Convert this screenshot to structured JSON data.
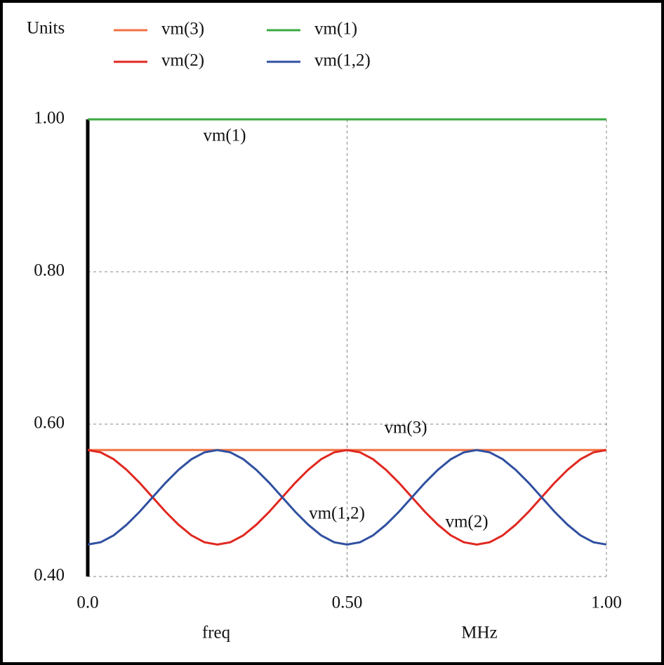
{
  "chart_data": {
    "type": "line",
    "ylabel": "Units",
    "xlabel": "freq",
    "xunit": "MHz",
    "x": [
      0,
      0.025,
      0.05,
      0.075,
      0.1,
      0.125,
      0.15,
      0.175,
      0.2,
      0.225,
      0.25,
      0.275,
      0.3,
      0.325,
      0.35,
      0.375,
      0.4,
      0.425,
      0.45,
      0.475,
      0.5,
      0.525,
      0.55,
      0.575,
      0.6,
      0.625,
      0.65,
      0.675,
      0.7,
      0.725,
      0.75,
      0.775,
      0.8,
      0.825,
      0.85,
      0.875,
      0.9,
      0.925,
      0.95,
      0.975,
      1.0
    ],
    "series": [
      {
        "name": "vm(3)",
        "color": "#f07040",
        "values": [
          0.566,
          0.566,
          0.566,
          0.566,
          0.566,
          0.566,
          0.566,
          0.566,
          0.566,
          0.566,
          0.566,
          0.566,
          0.566,
          0.566,
          0.566,
          0.566,
          0.566,
          0.566,
          0.566,
          0.566,
          0.566,
          0.566,
          0.566,
          0.566,
          0.566,
          0.566,
          0.566,
          0.566,
          0.566,
          0.566,
          0.566,
          0.566,
          0.566,
          0.566,
          0.566,
          0.566,
          0.566,
          0.566,
          0.566,
          0.566,
          0.566
        ]
      },
      {
        "name": "vm(1)",
        "color": "#3aaa40",
        "values": [
          1,
          1,
          1,
          1,
          1,
          1,
          1,
          1,
          1,
          1,
          1,
          1,
          1,
          1,
          1,
          1,
          1,
          1,
          1,
          1,
          1,
          1,
          1,
          1,
          1,
          1,
          1,
          1,
          1,
          1,
          1,
          1,
          1,
          1,
          1,
          1,
          1,
          1,
          1,
          1,
          1
        ]
      },
      {
        "name": "vm(2)",
        "color": "#e02820",
        "values": [
          0.566,
          0.563,
          0.554,
          0.54,
          0.523,
          0.504,
          0.485,
          0.468,
          0.454,
          0.445,
          0.442,
          0.445,
          0.454,
          0.468,
          0.485,
          0.504,
          0.523,
          0.54,
          0.554,
          0.563,
          0.566,
          0.563,
          0.554,
          0.54,
          0.523,
          0.504,
          0.485,
          0.468,
          0.454,
          0.445,
          0.442,
          0.445,
          0.454,
          0.468,
          0.485,
          0.504,
          0.523,
          0.54,
          0.554,
          0.563,
          0.566
        ]
      },
      {
        "name": "vm(1,2)",
        "color": "#3050a0",
        "values": [
          0.442,
          0.445,
          0.454,
          0.468,
          0.485,
          0.504,
          0.523,
          0.54,
          0.554,
          0.563,
          0.566,
          0.563,
          0.554,
          0.54,
          0.523,
          0.504,
          0.485,
          0.468,
          0.454,
          0.445,
          0.442,
          0.445,
          0.454,
          0.468,
          0.485,
          0.504,
          0.523,
          0.54,
          0.554,
          0.563,
          0.566,
          0.563,
          0.554,
          0.54,
          0.523,
          0.504,
          0.485,
          0.468,
          0.454,
          0.445,
          0.442
        ]
      }
    ],
    "annotations": [
      "vm(1)",
      "vm(3)",
      "vm(1,2)",
      "vm(2)"
    ],
    "xlim": [
      0,
      1
    ],
    "ylim": [
      0.4,
      1.0
    ],
    "xticks": [
      {
        "value": 0,
        "label": "0.0"
      },
      {
        "value": 0.5,
        "label": "0.50"
      },
      {
        "value": 1,
        "label": "1.00"
      }
    ],
    "yticks": [
      {
        "value": 0.4,
        "label": "0.40"
      },
      {
        "value": 0.6,
        "label": "0.60"
      },
      {
        "value": 0.8,
        "label": "0.80"
      },
      {
        "value": 1.0,
        "label": "1.00"
      }
    ],
    "grid": true
  }
}
